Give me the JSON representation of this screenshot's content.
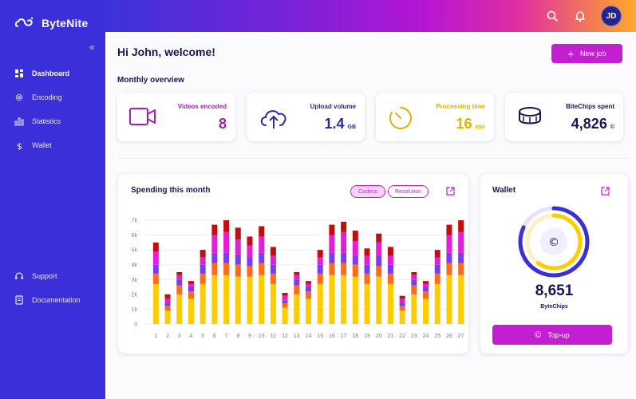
{
  "app": {
    "name": "ByteNite"
  },
  "sidebar": {
    "items": [
      {
        "label": "Dashboard",
        "icon": "dashboard-icon",
        "active": true
      },
      {
        "label": "Encoding",
        "icon": "gear-icon",
        "active": false
      },
      {
        "label": "Statistics",
        "icon": "bar-chart-icon",
        "active": false
      },
      {
        "label": "Wallet",
        "icon": "dollar-icon",
        "active": false
      }
    ],
    "bottom_items": [
      {
        "label": "Support",
        "icon": "headset-icon"
      },
      {
        "label": "Documentation",
        "icon": "document-icon"
      }
    ]
  },
  "header": {
    "avatar_initials": "JD"
  },
  "main": {
    "welcome": "Hi John, welcome!",
    "new_job_label": "New job",
    "monthly_title": "Monthly overview",
    "cards": [
      {
        "label": "Videos encoded",
        "value": "8",
        "unit": "",
        "color": "#a020b8"
      },
      {
        "label": "Upload volume",
        "value": "1.4",
        "unit": "GB",
        "color": "#2a2a9e"
      },
      {
        "label": "Processing time",
        "value": "16",
        "unit": "min",
        "color": "#e0b000"
      },
      {
        "label": "BiteChips spent",
        "value": "4,826",
        "unit": "©",
        "color": "#16165a"
      }
    ]
  },
  "spending": {
    "title": "Spending this month",
    "chips": [
      "Codecs",
      "Resolution"
    ]
  },
  "wallet": {
    "title": "Wallet",
    "value": "8,651",
    "unit": "ByteChips",
    "topup_label": "Top-up"
  },
  "chart_data": {
    "type": "bar",
    "stacked": true,
    "categories": [
      "1",
      "2",
      "3",
      "4",
      "5",
      "6",
      "7",
      "8",
      "9",
      "10",
      "11",
      "12",
      "13",
      "14",
      "15",
      "16",
      "17",
      "18",
      "19",
      "20",
      "21",
      "22",
      "23",
      "24",
      "25",
      "26",
      "27"
    ],
    "y_ticks": [
      "0",
      "1k",
      "2k",
      "3k",
      "4k",
      "5k",
      "6k",
      "7k"
    ],
    "ylim": [
      0,
      7000
    ],
    "colors": [
      "#ffcc00",
      "#ff6a1a",
      "#7a3cf0",
      "#e21fd6",
      "#c40e0e"
    ],
    "series": [
      {
        "values": [
          2700,
          900,
          2000,
          1700,
          2700,
          3300,
          3300,
          3200,
          3200,
          3300,
          2700,
          1100,
          2000,
          1700,
          2700,
          3300,
          3300,
          3200,
          2700,
          3200,
          2700,
          900,
          2000,
          1700,
          2700,
          3300,
          3300
        ]
      },
      {
        "values": [
          700,
          300,
          600,
          500,
          700,
          800,
          800,
          800,
          700,
          800,
          700,
          300,
          600,
          500,
          700,
          800,
          800,
          800,
          700,
          700,
          700,
          300,
          600,
          500,
          700,
          800,
          800
        ]
      },
      {
        "values": [
          600,
          200,
          400,
          300,
          600,
          700,
          700,
          700,
          600,
          700,
          600,
          200,
          400,
          300,
          600,
          700,
          700,
          600,
          600,
          700,
          600,
          200,
          400,
          300,
          600,
          700,
          700
        ]
      },
      {
        "values": [
          900,
          300,
          300,
          200,
          500,
          1200,
          1400,
          1000,
          800,
          1100,
          600,
          300,
          300,
          200,
          500,
          1200,
          1400,
          1000,
          600,
          900,
          600,
          300,
          300,
          200,
          500,
          1200,
          1400
        ]
      },
      {
        "values": [
          600,
          300,
          200,
          200,
          500,
          700,
          800,
          800,
          600,
          700,
          600,
          200,
          200,
          200,
          500,
          700,
          700,
          700,
          500,
          600,
          600,
          200,
          200,
          200,
          500,
          700,
          800
        ]
      }
    ]
  },
  "wallet_gauge": {
    "outer_fraction": 0.82,
    "inner_fraction": 0.6,
    "outer_color": "#3a2fd8",
    "inner_color": "#ffcc00"
  }
}
